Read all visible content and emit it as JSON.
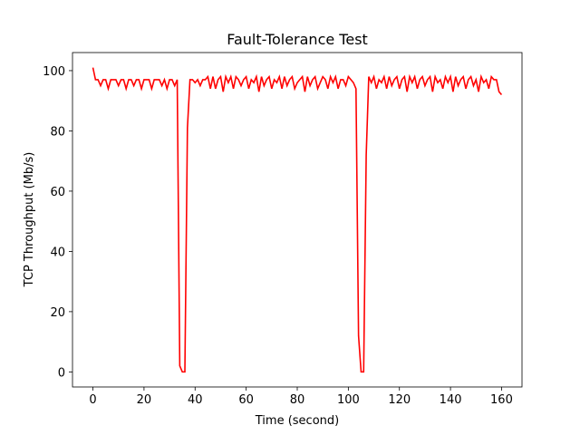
{
  "chart_data": {
    "type": "line",
    "title": "Fault-Tolerance Test",
    "x_label": "Time (second)",
    "y_label": "TCP Throughput (Mb/s)",
    "x": [
      0,
      1,
      2,
      3,
      4,
      5,
      6,
      7,
      8,
      9,
      10,
      11,
      12,
      13,
      14,
      15,
      16,
      17,
      18,
      19,
      20,
      21,
      22,
      23,
      24,
      25,
      26,
      27,
      28,
      29,
      30,
      31,
      32,
      33,
      34,
      35,
      36,
      37,
      38,
      39,
      40,
      41,
      42,
      43,
      44,
      45,
      46,
      47,
      48,
      49,
      50,
      51,
      52,
      53,
      54,
      55,
      56,
      57,
      58,
      59,
      60,
      61,
      62,
      63,
      64,
      65,
      66,
      67,
      68,
      69,
      70,
      71,
      72,
      73,
      74,
      75,
      76,
      77,
      78,
      79,
      80,
      81,
      82,
      83,
      84,
      85,
      86,
      87,
      88,
      89,
      90,
      91,
      92,
      93,
      94,
      95,
      96,
      97,
      98,
      99,
      100,
      101,
      102,
      103,
      104,
      105,
      106,
      107,
      108,
      109,
      110,
      111,
      112,
      113,
      114,
      115,
      116,
      117,
      118,
      119,
      120,
      121,
      122,
      123,
      124,
      125,
      126,
      127,
      128,
      129,
      130,
      131,
      132,
      133,
      134,
      135,
      136,
      137,
      138,
      139,
      140,
      141,
      142,
      143,
      144,
      145,
      146,
      147,
      148,
      149,
      150,
      151,
      152,
      153,
      154,
      155,
      156,
      157,
      158,
      159,
      160
    ],
    "series": [
      {
        "color": "#ff0000",
        "values": [
          101,
          97,
          97,
          95,
          97,
          97,
          94,
          97,
          97,
          97,
          95,
          97,
          97,
          94,
          97,
          97,
          95,
          97,
          97,
          94,
          97,
          97,
          97,
          94,
          97,
          97,
          97,
          95,
          97,
          94,
          97,
          97,
          95,
          97,
          2,
          0,
          0,
          81,
          97,
          97,
          96,
          97,
          95,
          97,
          97,
          98,
          94,
          98,
          94,
          97,
          98,
          93,
          98,
          96,
          98,
          94,
          98,
          97,
          95,
          97,
          98,
          94,
          97,
          96,
          98,
          93,
          98,
          95,
          97,
          98,
          94,
          97,
          96,
          98,
          94,
          98,
          95,
          97,
          98,
          94,
          96,
          97,
          98,
          93,
          98,
          95,
          97,
          98,
          94,
          96,
          98,
          97,
          94,
          98,
          96,
          98,
          94,
          97,
          97,
          95,
          98,
          97,
          96,
          94,
          12,
          0,
          0,
          72,
          98,
          96,
          98,
          94,
          97,
          96,
          98,
          94,
          98,
          95,
          97,
          98,
          94,
          97,
          98,
          93,
          98,
          96,
          98,
          94,
          97,
          98,
          95,
          97,
          98,
          93,
          98,
          96,
          97,
          94,
          98,
          96,
          98,
          93,
          98,
          95,
          97,
          98,
          94,
          97,
          98,
          95,
          97,
          93,
          98,
          96,
          97,
          94,
          98,
          97,
          97,
          93,
          92
        ]
      }
    ],
    "xlim": [
      -8,
      168
    ],
    "ylim": [
      -5,
      106
    ],
    "xticks": [
      0,
      20,
      40,
      60,
      80,
      100,
      120,
      140,
      160
    ],
    "yticks": [
      0,
      20,
      40,
      60,
      80,
      100
    ]
  }
}
